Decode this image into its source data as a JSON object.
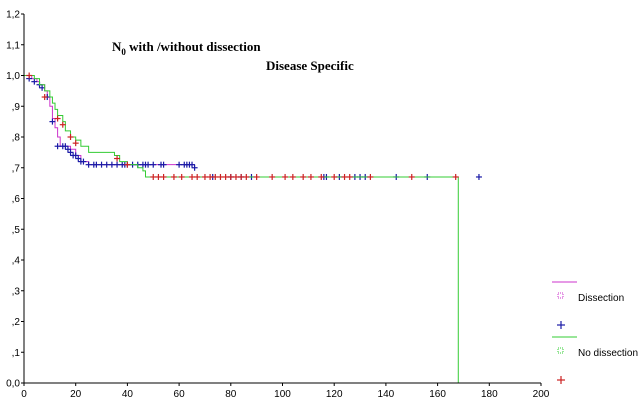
{
  "chart_data": {
    "type": "line",
    "title_main": "N",
    "title_sub": "0",
    "title_rest": " with /without dissection",
    "subtitle": "Disease Specific",
    "xlim": [
      0,
      200
    ],
    "ylim": [
      0.0,
      1.2
    ],
    "x_ticks": [
      {
        "value": 0,
        "label": "0"
      },
      {
        "value": 20,
        "label": "20"
      },
      {
        "value": 40,
        "label": "40"
      },
      {
        "value": 60,
        "label": "60"
      },
      {
        "value": 80,
        "label": "80"
      },
      {
        "value": 100,
        "label": "100"
      },
      {
        "value": 120,
        "label": "120"
      },
      {
        "value": 140,
        "label": "140"
      },
      {
        "value": 160,
        "label": "160"
      },
      {
        "value": 180,
        "label": "180"
      },
      {
        "value": 200,
        "label": "200"
      }
    ],
    "y_ticks": [
      {
        "value": 0.0,
        "label": "0,0"
      },
      {
        "value": 0.1,
        "label": ",1"
      },
      {
        "value": 0.2,
        "label": ",2"
      },
      {
        "value": 0.3,
        "label": ",3"
      },
      {
        "value": 0.4,
        "label": ",4"
      },
      {
        "value": 0.5,
        "label": ",5"
      },
      {
        "value": 0.6,
        "label": ",6"
      },
      {
        "value": 0.7,
        "label": ",7"
      },
      {
        "value": 0.8,
        "label": ",8"
      },
      {
        "value": 0.9,
        "label": ",9"
      },
      {
        "value": 1.0,
        "label": "1,0"
      },
      {
        "value": 1.1,
        "label": "1,1"
      },
      {
        "value": 1.2,
        "label": "1,2"
      }
    ],
    "series": [
      {
        "name": "Dissection",
        "line_color": "#cc33cc",
        "censor_color": "#1a1aa6",
        "steps": [
          [
            0,
            1.0
          ],
          [
            3,
            0.99
          ],
          [
            5,
            0.98
          ],
          [
            6,
            0.97
          ],
          [
            8,
            0.95
          ],
          [
            9,
            0.93
          ],
          [
            10,
            0.9
          ],
          [
            11,
            0.86
          ],
          [
            12,
            0.83
          ],
          [
            13,
            0.8
          ],
          [
            14,
            0.77
          ],
          [
            18,
            0.76
          ],
          [
            20,
            0.74
          ],
          [
            22,
            0.72
          ],
          [
            25,
            0.71
          ],
          [
            66,
            0.71
          ]
        ],
        "censored": [
          [
            2,
            0.99
          ],
          [
            4,
            0.98
          ],
          [
            6,
            0.97
          ],
          [
            7,
            0.96
          ],
          [
            9,
            0.93
          ],
          [
            11,
            0.85
          ],
          [
            13,
            0.77
          ],
          [
            15,
            0.77
          ],
          [
            16,
            0.77
          ],
          [
            17,
            0.76
          ],
          [
            18,
            0.75
          ],
          [
            19,
            0.74
          ],
          [
            20,
            0.74
          ],
          [
            21,
            0.73
          ],
          [
            22,
            0.72
          ],
          [
            23,
            0.72
          ],
          [
            25,
            0.71
          ],
          [
            27,
            0.71
          ],
          [
            28,
            0.71
          ],
          [
            30,
            0.71
          ],
          [
            32,
            0.71
          ],
          [
            34,
            0.71
          ],
          [
            36,
            0.71
          ],
          [
            38,
            0.71
          ],
          [
            39,
            0.71
          ],
          [
            40,
            0.71
          ],
          [
            42,
            0.71
          ],
          [
            44,
            0.71
          ],
          [
            46,
            0.71
          ],
          [
            47,
            0.71
          ],
          [
            48,
            0.71
          ],
          [
            50,
            0.71
          ],
          [
            53,
            0.71
          ],
          [
            54,
            0.71
          ],
          [
            60,
            0.71
          ],
          [
            62,
            0.71
          ],
          [
            63,
            0.71
          ],
          [
            64,
            0.71
          ],
          [
            65,
            0.71
          ],
          [
            66,
            0.7
          ],
          [
            73,
            0.67
          ],
          [
            80,
            0.67
          ],
          [
            84,
            0.67
          ],
          [
            88,
            0.67
          ],
          [
            116,
            0.67
          ],
          [
            117,
            0.67
          ],
          [
            122,
            0.67
          ],
          [
            128,
            0.67
          ],
          [
            130,
            0.67
          ],
          [
            132,
            0.67
          ],
          [
            144,
            0.67
          ],
          [
            156,
            0.67
          ],
          [
            176,
            0.67
          ]
        ]
      },
      {
        "name": "No dissection",
        "line_color": "#33cc33",
        "censor_color": "#cc2222",
        "steps": [
          [
            0,
            1.0
          ],
          [
            4,
            0.99
          ],
          [
            6,
            0.97
          ],
          [
            8,
            0.95
          ],
          [
            10,
            0.93
          ],
          [
            11,
            0.91
          ],
          [
            12,
            0.89
          ],
          [
            13,
            0.87
          ],
          [
            15,
            0.85
          ],
          [
            16,
            0.82
          ],
          [
            18,
            0.8
          ],
          [
            20,
            0.79
          ],
          [
            22,
            0.77
          ],
          [
            25,
            0.75
          ],
          [
            35,
            0.74
          ],
          [
            37,
            0.72
          ],
          [
            40,
            0.71
          ],
          [
            44,
            0.7
          ],
          [
            46,
            0.69
          ],
          [
            47,
            0.67
          ],
          [
            168,
            0.67
          ],
          [
            168,
            0.0
          ]
        ],
        "censored": [
          [
            2,
            1.0
          ],
          [
            8,
            0.93
          ],
          [
            13,
            0.86
          ],
          [
            15,
            0.84
          ],
          [
            18,
            0.8
          ],
          [
            20,
            0.78
          ],
          [
            36,
            0.73
          ],
          [
            40,
            0.71
          ],
          [
            50,
            0.67
          ],
          [
            52,
            0.67
          ],
          [
            54,
            0.67
          ],
          [
            58,
            0.67
          ],
          [
            61,
            0.67
          ],
          [
            65,
            0.67
          ],
          [
            67,
            0.67
          ],
          [
            70,
            0.67
          ],
          [
            72,
            0.67
          ],
          [
            74,
            0.67
          ],
          [
            76,
            0.67
          ],
          [
            78,
            0.67
          ],
          [
            80,
            0.67
          ],
          [
            82,
            0.67
          ],
          [
            84,
            0.67
          ],
          [
            86,
            0.67
          ],
          [
            90,
            0.67
          ],
          [
            96,
            0.67
          ],
          [
            101,
            0.67
          ],
          [
            104,
            0.67
          ],
          [
            108,
            0.67
          ],
          [
            111,
            0.67
          ],
          [
            115,
            0.67
          ],
          [
            120,
            0.67
          ],
          [
            124,
            0.67
          ],
          [
            126,
            0.67
          ],
          [
            134,
            0.67
          ],
          [
            150,
            0.67
          ],
          [
            167,
            0.67
          ]
        ]
      }
    ],
    "legend": [
      {
        "label": "Dissection",
        "line_color": "#cc33cc",
        "censor_color": "#1a1aa6"
      },
      {
        "label": "No dissection",
        "line_color": "#33cc33",
        "censor_color": "#cc2222"
      }
    ]
  }
}
